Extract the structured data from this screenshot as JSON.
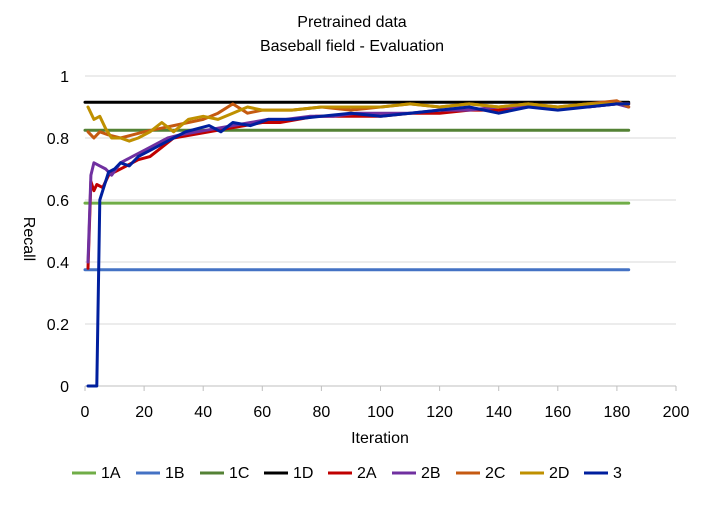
{
  "chart_data": {
    "type": "line",
    "title": "Pretrained data",
    "subtitle": "Baseball field - Evaluation",
    "xlabel": "Iteration",
    "ylabel": "Recall",
    "xlim": [
      0,
      200
    ],
    "ylim": [
      0,
      1
    ],
    "x_ticks": [
      "0",
      "20",
      "40",
      "60",
      "80",
      "100",
      "120",
      "140",
      "160",
      "180",
      "200"
    ],
    "y_ticks": [
      "0",
      "0.2",
      "0.4",
      "0.6",
      "0.8",
      "1"
    ],
    "grid": "horizontal",
    "legend_position": "bottom",
    "series": [
      {
        "name": "1A",
        "color": "#70ad47",
        "x": [
          0,
          184
        ],
        "y": [
          0.59,
          0.59
        ]
      },
      {
        "name": "1B",
        "color": "#4472c4",
        "x": [
          0,
          184
        ],
        "y": [
          0.375,
          0.375
        ]
      },
      {
        "name": "1C",
        "color": "#548235",
        "x": [
          0,
          184
        ],
        "y": [
          0.825,
          0.825
        ]
      },
      {
        "name": "1D",
        "color": "#000000",
        "x": [
          0,
          184
        ],
        "y": [
          0.915,
          0.915
        ]
      },
      {
        "name": "2A",
        "color": "#c00000",
        "x": [
          1,
          2,
          3,
          4,
          6,
          8,
          10,
          14,
          18,
          22,
          26,
          30,
          36,
          42,
          48,
          54,
          60,
          66,
          72,
          78,
          84,
          90,
          100,
          110,
          120,
          130,
          140,
          150,
          160,
          170,
          180,
          184
        ],
        "y": [
          0.38,
          0.66,
          0.63,
          0.65,
          0.64,
          0.68,
          0.69,
          0.71,
          0.73,
          0.74,
          0.77,
          0.8,
          0.81,
          0.82,
          0.83,
          0.84,
          0.85,
          0.85,
          0.86,
          0.87,
          0.87,
          0.87,
          0.87,
          0.88,
          0.88,
          0.89,
          0.89,
          0.9,
          0.9,
          0.9,
          0.91,
          0.91
        ]
      },
      {
        "name": "2B",
        "color": "#7030a0",
        "x": [
          1,
          2,
          3,
          5,
          7,
          9,
          12,
          16,
          20,
          24,
          28,
          32,
          38,
          44,
          50,
          56,
          62,
          68,
          76,
          84,
          92,
          100,
          110,
          120,
          130,
          140,
          150,
          160,
          170,
          180,
          184
        ],
        "y": [
          0.4,
          0.68,
          0.72,
          0.71,
          0.7,
          0.68,
          0.72,
          0.74,
          0.76,
          0.78,
          0.8,
          0.81,
          0.82,
          0.83,
          0.84,
          0.85,
          0.86,
          0.86,
          0.87,
          0.87,
          0.88,
          0.88,
          0.88,
          0.89,
          0.89,
          0.9,
          0.9,
          0.9,
          0.9,
          0.91,
          0.9
        ]
      },
      {
        "name": "2C",
        "color": "#c55a11",
        "x": [
          1,
          3,
          5,
          8,
          12,
          16,
          20,
          25,
          30,
          35,
          40,
          45,
          50,
          55,
          60,
          70,
          80,
          90,
          100,
          110,
          120,
          130,
          140,
          150,
          160,
          170,
          180,
          184
        ],
        "y": [
          0.82,
          0.8,
          0.82,
          0.81,
          0.8,
          0.81,
          0.82,
          0.83,
          0.84,
          0.85,
          0.86,
          0.88,
          0.91,
          0.88,
          0.89,
          0.89,
          0.9,
          0.89,
          0.9,
          0.91,
          0.9,
          0.91,
          0.9,
          0.91,
          0.9,
          0.91,
          0.92,
          0.9
        ]
      },
      {
        "name": "2D",
        "color": "#bf9000",
        "x": [
          1,
          3,
          5,
          7,
          9,
          12,
          15,
          18,
          22,
          26,
          30,
          35,
          40,
          45,
          50,
          55,
          60,
          70,
          80,
          90,
          100,
          110,
          120,
          130,
          140,
          150,
          160,
          170,
          180,
          184
        ],
        "y": [
          0.9,
          0.86,
          0.87,
          0.83,
          0.8,
          0.8,
          0.79,
          0.8,
          0.82,
          0.85,
          0.82,
          0.86,
          0.87,
          0.86,
          0.88,
          0.9,
          0.89,
          0.89,
          0.9,
          0.9,
          0.9,
          0.91,
          0.9,
          0.91,
          0.9,
          0.91,
          0.9,
          0.91,
          0.91,
          0.91
        ]
      },
      {
        "name": "3",
        "color": "#001f9e",
        "x": [
          1,
          3,
          4,
          5,
          6,
          8,
          10,
          12,
          15,
          18,
          22,
          26,
          30,
          34,
          38,
          42,
          46,
          50,
          56,
          62,
          70,
          80,
          90,
          100,
          110,
          120,
          130,
          140,
          150,
          160,
          170,
          180,
          184
        ],
        "y": [
          0,
          0,
          0,
          0.6,
          0.63,
          0.69,
          0.7,
          0.72,
          0.71,
          0.74,
          0.76,
          0.78,
          0.8,
          0.82,
          0.83,
          0.84,
          0.82,
          0.85,
          0.84,
          0.86,
          0.86,
          0.87,
          0.88,
          0.87,
          0.88,
          0.89,
          0.9,
          0.88,
          0.9,
          0.89,
          0.9,
          0.91,
          0.91
        ]
      }
    ]
  }
}
